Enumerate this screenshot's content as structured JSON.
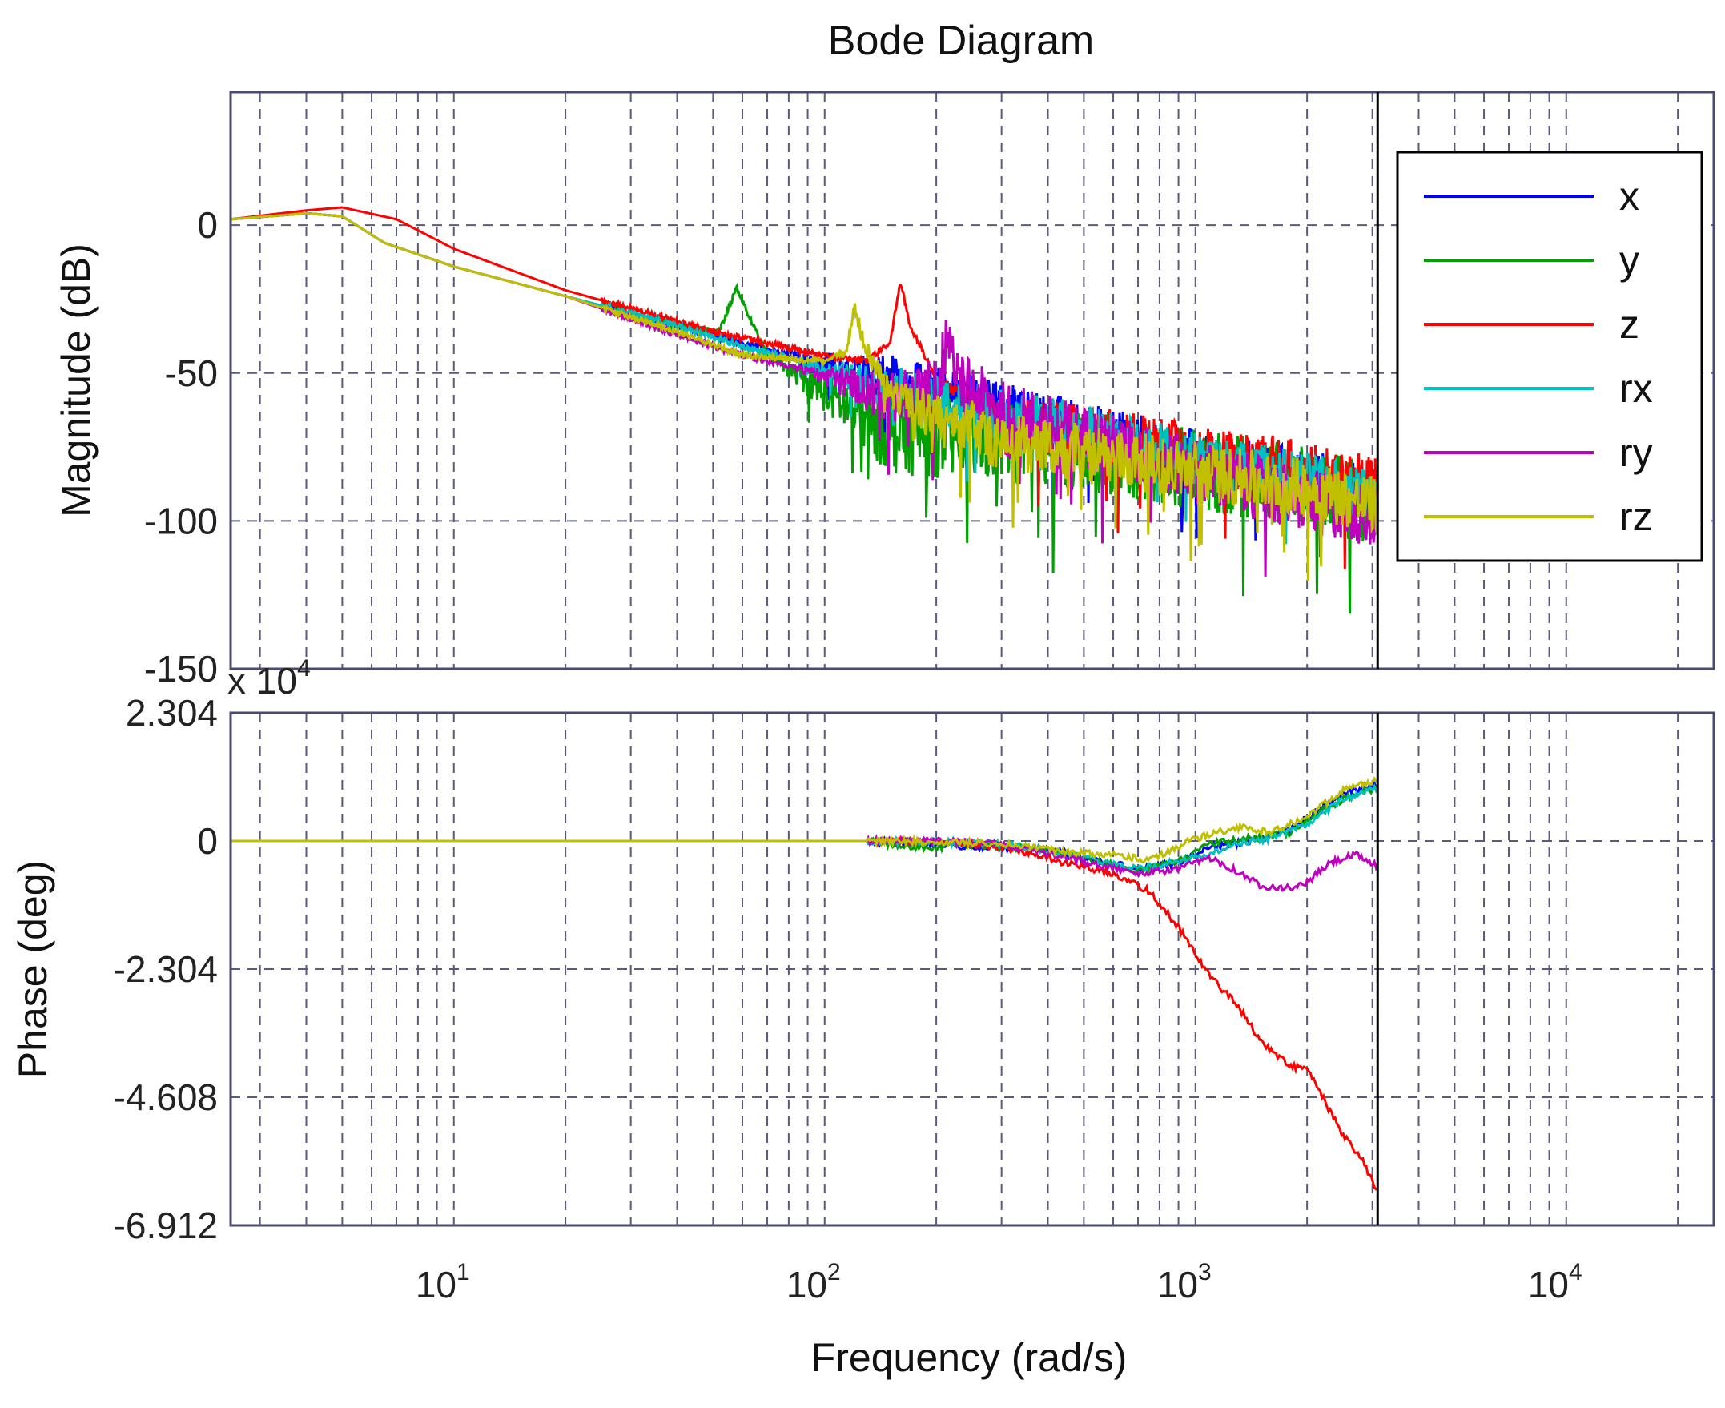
{
  "chart_data": {
    "type": "line",
    "title": "Bode Diagram",
    "xlabel": "Frequency  (rad/s)",
    "xscale": "log",
    "xlim": [
      2.5,
      25000
    ],
    "x_ticks": [
      {
        "value": 10,
        "base": "10",
        "exp": "1"
      },
      {
        "value": 100,
        "base": "10",
        "exp": "2"
      },
      {
        "value": 1000,
        "base": "10",
        "exp": "3"
      },
      {
        "value": 10000,
        "base": "10",
        "exp": "4"
      }
    ],
    "data_end_frequency": 3100,
    "magnitude": {
      "ylabel": "Magnitude (dB)",
      "ylim": [
        -150,
        45
      ],
      "yticks": [
        0,
        -50,
        -100,
        -150
      ],
      "ytick_labels": [
        "0",
        "-50",
        "-100",
        "-150"
      ],
      "series": [
        {
          "name": "x",
          "color": "#0000ff",
          "points": [
            [
              2.5,
              2
            ],
            [
              4,
              4
            ],
            [
              5,
              3
            ],
            [
              6.5,
              -6
            ],
            [
              10,
              -14
            ],
            [
              20,
              -24
            ],
            [
              40,
              -34
            ],
            [
              60,
              -40
            ],
            [
              100,
              -46
            ],
            [
              200,
              -53
            ],
            [
              400,
              -63
            ],
            [
              1000,
              -75
            ],
            [
              2000,
              -82
            ],
            [
              3100,
              -88
            ]
          ],
          "noise_from": 70,
          "noise_amp": 9
        },
        {
          "name": "y",
          "color": "#00a000",
          "points": [
            [
              2.5,
              2
            ],
            [
              4,
              4
            ],
            [
              5,
              3
            ],
            [
              6.5,
              -6
            ],
            [
              10,
              -14
            ],
            [
              20,
              -24
            ],
            [
              40,
              -34
            ],
            [
              52,
              -36
            ],
            [
              58,
              -21
            ],
            [
              62,
              -30
            ],
            [
              70,
              -44
            ],
            [
              90,
              -52
            ],
            [
              150,
              -66
            ],
            [
              400,
              -70
            ],
            [
              1000,
              -78
            ],
            [
              2000,
              -85
            ],
            [
              3100,
              -90
            ]
          ],
          "noise_from": 70,
          "noise_amp": 14
        },
        {
          "name": "z",
          "color": "#ff0000",
          "points": [
            [
              2.5,
              2
            ],
            [
              4,
              5
            ],
            [
              5,
              6
            ],
            [
              7,
              2
            ],
            [
              10,
              -8
            ],
            [
              20,
              -22
            ],
            [
              50,
              -36
            ],
            [
              100,
              -44
            ],
            [
              130,
              -46
            ],
            [
              150,
              -40
            ],
            [
              160,
              -19
            ],
            [
              170,
              -34
            ],
            [
              200,
              -52
            ],
            [
              300,
              -63
            ],
            [
              1000,
              -74
            ],
            [
              2000,
              -80
            ],
            [
              3100,
              -85
            ]
          ],
          "noise_from": 190,
          "noise_amp": 10
        },
        {
          "name": "rx",
          "color": "#00c0c0",
          "points": [
            [
              2.5,
              2
            ],
            [
              4,
              4
            ],
            [
              5,
              3
            ],
            [
              6.5,
              -6
            ],
            [
              10,
              -14
            ],
            [
              20,
              -24
            ],
            [
              40,
              -34
            ],
            [
              60,
              -41
            ],
            [
              100,
              -48
            ],
            [
              200,
              -57
            ],
            [
              400,
              -64
            ],
            [
              1000,
              -76
            ],
            [
              2000,
              -83
            ],
            [
              3100,
              -89
            ]
          ],
          "noise_from": 80,
          "noise_amp": 9
        },
        {
          "name": "ry",
          "color": "#c000c0",
          "points": [
            [
              2.5,
              2
            ],
            [
              4,
              4
            ],
            [
              5,
              3
            ],
            [
              6.5,
              -6
            ],
            [
              10,
              -14
            ],
            [
              20,
              -24
            ],
            [
              40,
              -37
            ],
            [
              60,
              -44
            ],
            [
              100,
              -50
            ],
            [
              150,
              -56
            ],
            [
              200,
              -52
            ],
            [
              215,
              -36
            ],
            [
              230,
              -50
            ],
            [
              300,
              -60
            ],
            [
              1000,
              -80
            ],
            [
              2000,
              -90
            ],
            [
              3100,
              -95
            ]
          ],
          "noise_from": 80,
          "noise_amp": 11
        },
        {
          "name": "rz",
          "color": "#c0c000",
          "points": [
            [
              2.5,
              2
            ],
            [
              4,
              4
            ],
            [
              5,
              3
            ],
            [
              6.5,
              -6
            ],
            [
              10,
              -14
            ],
            [
              20,
              -24
            ],
            [
              40,
              -36
            ],
            [
              60,
              -44
            ],
            [
              100,
              -46
            ],
            [
              115,
              -42
            ],
            [
              120,
              -26
            ],
            [
              128,
              -40
            ],
            [
              150,
              -56
            ],
            [
              300,
              -70
            ],
            [
              1000,
              -80
            ],
            [
              2000,
              -86
            ],
            [
              3100,
              -92
            ]
          ],
          "noise_from": 100,
          "noise_amp": 10
        }
      ]
    },
    "phase": {
      "ylabel": "Phase (deg)",
      "exponent_label": "x 10",
      "exponent_power": "4",
      "ylim": [
        -6.912,
        2.304
      ],
      "yticks": [
        2.304,
        0,
        -2.304,
        -4.608,
        -6.912
      ],
      "ytick_labels": [
        "2.304",
        "0",
        "-2.304",
        "-4.608",
        "-6.912"
      ],
      "series": [
        {
          "name": "x",
          "color": "#0000ff",
          "points": [
            [
              2.5,
              0
            ],
            [
              130,
              0
            ],
            [
              250,
              -0.1
            ],
            [
              400,
              -0.15
            ],
            [
              700,
              -0.5
            ],
            [
              900,
              -0.4
            ],
            [
              1100,
              -0.1
            ],
            [
              1400,
              0
            ],
            [
              1800,
              0.2
            ],
            [
              2200,
              0.6
            ],
            [
              2600,
              0.9
            ],
            [
              3100,
              1.0
            ]
          ]
        },
        {
          "name": "y",
          "color": "#00a000",
          "points": [
            [
              2.5,
              0
            ],
            [
              130,
              0
            ],
            [
              150,
              -0.05
            ],
            [
              200,
              -0.15
            ],
            [
              220,
              -0.05
            ],
            [
              400,
              -0.15
            ],
            [
              700,
              -0.55
            ],
            [
              900,
              -0.35
            ],
            [
              1100,
              -0.05
            ],
            [
              1400,
              0.05
            ],
            [
              1800,
              0.15
            ],
            [
              2200,
              0.55
            ],
            [
              2600,
              0.8
            ],
            [
              3100,
              0.95
            ]
          ]
        },
        {
          "name": "z",
          "color": "#ff0000",
          "points": [
            [
              2.5,
              0
            ],
            [
              200,
              0
            ],
            [
              300,
              -0.1
            ],
            [
              450,
              -0.4
            ],
            [
              600,
              -0.6
            ],
            [
              750,
              -0.9
            ],
            [
              900,
              -1.55
            ],
            [
              1100,
              -2.45
            ],
            [
              1300,
              -2.95
            ],
            [
              1500,
              -3.6
            ],
            [
              1800,
              -4.05
            ],
            [
              2000,
              -4.1
            ],
            [
              2200,
              -4.6
            ],
            [
              2500,
              -5.3
            ],
            [
              2800,
              -5.7
            ],
            [
              3100,
              -6.3
            ]
          ]
        },
        {
          "name": "rx",
          "color": "#00c0c0",
          "points": [
            [
              2.5,
              0
            ],
            [
              150,
              0
            ],
            [
              300,
              -0.05
            ],
            [
              450,
              -0.25
            ],
            [
              700,
              -0.5
            ],
            [
              1000,
              -0.3
            ],
            [
              1300,
              -0.05
            ],
            [
              1600,
              0.05
            ],
            [
              2000,
              0.3
            ],
            [
              2500,
              0.75
            ],
            [
              3100,
              0.95
            ]
          ]
        },
        {
          "name": "ry",
          "color": "#c000c0",
          "points": [
            [
              2.5,
              0
            ],
            [
              200,
              0
            ],
            [
              300,
              -0.05
            ],
            [
              450,
              -0.3
            ],
            [
              700,
              -0.6
            ],
            [
              900,
              -0.5
            ],
            [
              1100,
              -0.3
            ],
            [
              1300,
              -0.55
            ],
            [
              1500,
              -0.8
            ],
            [
              1800,
              -0.85
            ],
            [
              2000,
              -0.75
            ],
            [
              2300,
              -0.4
            ],
            [
              2700,
              -0.25
            ],
            [
              3100,
              -0.45
            ]
          ]
        },
        {
          "name": "rz",
          "color": "#c0c000",
          "points": [
            [
              2.5,
              0
            ],
            [
              150,
              0
            ],
            [
              300,
              -0.05
            ],
            [
              450,
              -0.2
            ],
            [
              600,
              -0.25
            ],
            [
              750,
              -0.35
            ],
            [
              1000,
              0.05
            ],
            [
              1300,
              0.25
            ],
            [
              1600,
              0.15
            ],
            [
              2000,
              0.45
            ],
            [
              2500,
              0.9
            ],
            [
              3100,
              1.1
            ]
          ]
        }
      ]
    },
    "legend": {
      "placement": "top-right",
      "entries": [
        "x",
        "y",
        "z",
        "rx",
        "ry",
        "rz"
      ]
    }
  }
}
